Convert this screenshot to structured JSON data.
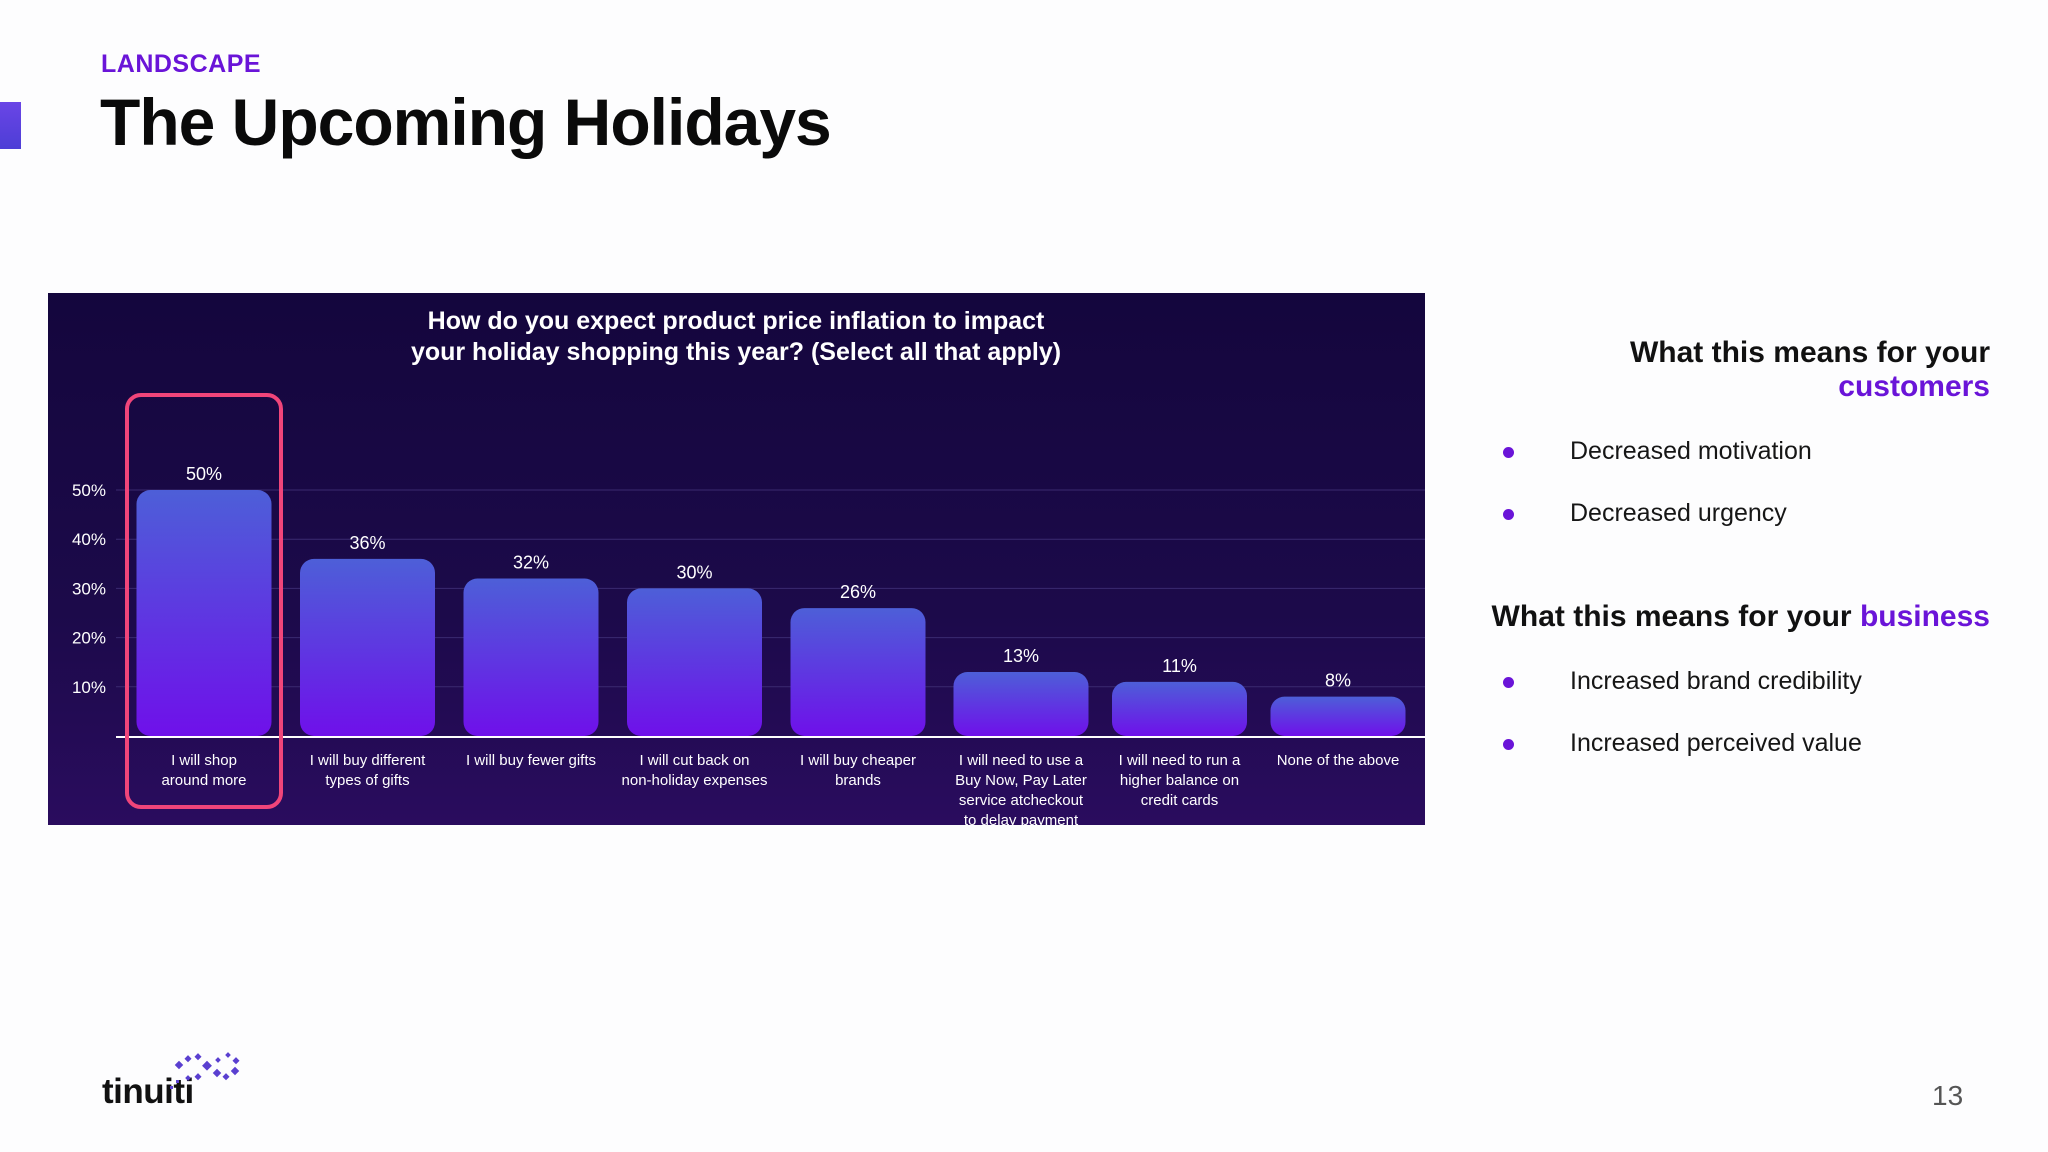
{
  "header": {
    "section_label": "LANDSCAPE",
    "title": "The Upcoming Holidays"
  },
  "chart_data": {
    "type": "bar",
    "title_line1": "How do you expect product price inflation to impact",
    "title_line2": "your holiday shopping this year? (Select all that apply)",
    "categories": [
      [
        "I will shop",
        "around more"
      ],
      [
        "I will buy different",
        "types of gifts"
      ],
      [
        "I will buy fewer gifts"
      ],
      [
        "I will cut back on",
        "non-holiday expenses"
      ],
      [
        "I will buy cheaper",
        "brands"
      ],
      [
        "I will need to use a",
        "Buy Now, Pay Later",
        "service atcheckout",
        "to delay payment"
      ],
      [
        "I will need to run a",
        "higher balance on",
        "credit cards"
      ],
      [
        "None of the above"
      ]
    ],
    "values": [
      50,
      36,
      32,
      30,
      26,
      13,
      11,
      8
    ],
    "value_labels": [
      "50%",
      "36%",
      "32%",
      "30%",
      "26%",
      "13%",
      "11%",
      "8%"
    ],
    "yticks": [
      10,
      20,
      30,
      40,
      50
    ],
    "ytick_labels": [
      "10%",
      "20%",
      "30%",
      "40%",
      "50%"
    ],
    "ylim": [
      0,
      50
    ],
    "highlighted_index": 0,
    "grid": true,
    "colors": {
      "bar_top": "#4d5fd8",
      "bar_bottom": "#6f10ea",
      "highlight": "#f0457a",
      "text": "#ffffff"
    }
  },
  "customers": {
    "heading_prefix": "What this means for your ",
    "heading_highlight": "customers",
    "items": [
      "Decreased motivation",
      "Decreased urgency"
    ]
  },
  "business": {
    "heading_prefix": "What this means for your ",
    "heading_highlight": "business",
    "items": [
      "Increased brand credibility",
      "Increased perceived value"
    ]
  },
  "footer": {
    "logo_text": "tinuiti",
    "page_number": "13"
  }
}
